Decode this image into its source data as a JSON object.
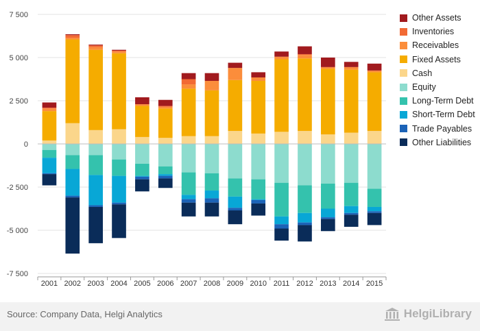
{
  "chart_data": {
    "type": "bar",
    "stacked": true,
    "categories": [
      "2001",
      "2002",
      "2003",
      "2004",
      "2005",
      "2006",
      "2007",
      "2008",
      "2009",
      "2010",
      "2011",
      "2012",
      "2013",
      "2014",
      "2015"
    ],
    "ylim": [
      -7500,
      7500
    ],
    "yticks": [
      -7500,
      -5000,
      -2500,
      0,
      2500,
      5000,
      7500
    ],
    "ytick_labels": [
      "-7 500",
      "-5 000",
      "-2 500",
      "0",
      "2 500",
      "5 000",
      "7 500"
    ],
    "grid": true,
    "legend_position": "right",
    "series": [
      {
        "name": "Cash",
        "side": "asset",
        "color": "#fbd68b",
        "values": [
          200,
          1200,
          800,
          850,
          400,
          350,
          450,
          450,
          750,
          600,
          700,
          750,
          550,
          650,
          750
        ]
      },
      {
        "name": "Fixed Assets",
        "side": "asset",
        "color": "#f5ac00",
        "values": [
          1700,
          4850,
          4650,
          4400,
          1800,
          1700,
          2750,
          2650,
          2950,
          3050,
          4200,
          4200,
          3800,
          3650,
          3400
        ]
      },
      {
        "name": "Receivables",
        "side": "asset",
        "color": "#fb8d3b",
        "values": [
          150,
          100,
          150,
          100,
          100,
          100,
          250,
          550,
          700,
          200,
          150,
          200,
          100,
          150,
          100
        ]
      },
      {
        "name": "Inventories",
        "side": "asset",
        "color": "#f26a34",
        "values": [
          50,
          150,
          100,
          50,
          0,
          50,
          300,
          0,
          0,
          0,
          0,
          50,
          0,
          0,
          0
        ]
      },
      {
        "name": "Other Assets",
        "side": "asset",
        "color": "#a11a1e",
        "values": [
          300,
          50,
          50,
          50,
          400,
          350,
          350,
          450,
          300,
          300,
          300,
          450,
          550,
          300,
          400
        ]
      },
      {
        "name": "Equity",
        "side": "liability",
        "color": "#8ddcce",
        "values": [
          350,
          650,
          650,
          900,
          1150,
          1300,
          1650,
          1700,
          2000,
          2050,
          2250,
          2400,
          2300,
          2250,
          2600
        ]
      },
      {
        "name": "Long-Term Debt",
        "side": "liability",
        "color": "#34c2ad",
        "values": [
          450,
          800,
          1150,
          950,
          700,
          450,
          1300,
          1000,
          1050,
          1150,
          1950,
          1600,
          1450,
          1350,
          1050
        ]
      },
      {
        "name": "Short-Term Debt",
        "side": "liability",
        "color": "#08a7d6",
        "values": [
          900,
          1550,
          1750,
          1550,
          50,
          100,
          250,
          450,
          650,
          50,
          450,
          550,
          500,
          400,
          250
        ]
      },
      {
        "name": "Trade Payables",
        "side": "liability",
        "color": "#1c63b7",
        "values": [
          50,
          100,
          100,
          100,
          150,
          150,
          200,
          250,
          150,
          200,
          250,
          150,
          100,
          100,
          100
        ]
      },
      {
        "name": "Other Liabilities",
        "side": "liability",
        "color": "#0a2c59",
        "values": [
          650,
          3250,
          2100,
          1950,
          700,
          550,
          800,
          800,
          800,
          700,
          700,
          950,
          700,
          700,
          700
        ]
      }
    ]
  },
  "legend": [
    {
      "label": "Other Assets",
      "color": "#a11a1e"
    },
    {
      "label": "Inventories",
      "color": "#f26a34"
    },
    {
      "label": "Receivables",
      "color": "#fb8d3b"
    },
    {
      "label": "Fixed Assets",
      "color": "#f5ac00"
    },
    {
      "label": "Cash",
      "color": "#fbd68b"
    },
    {
      "label": "Equity",
      "color": "#8ddcce"
    },
    {
      "label": "Long-Term Debt",
      "color": "#34c2ad"
    },
    {
      "label": "Short-Term Debt",
      "color": "#08a7d6"
    },
    {
      "label": "Trade Payables",
      "color": "#1c63b7"
    },
    {
      "label": "Other Liabilities",
      "color": "#0a2c59"
    }
  ],
  "footer": {
    "source": "Source: Company Data, Helgi Analytics",
    "brand": "HelgiLibrary",
    "brand_icon": "helgi-library-building-icon"
  }
}
